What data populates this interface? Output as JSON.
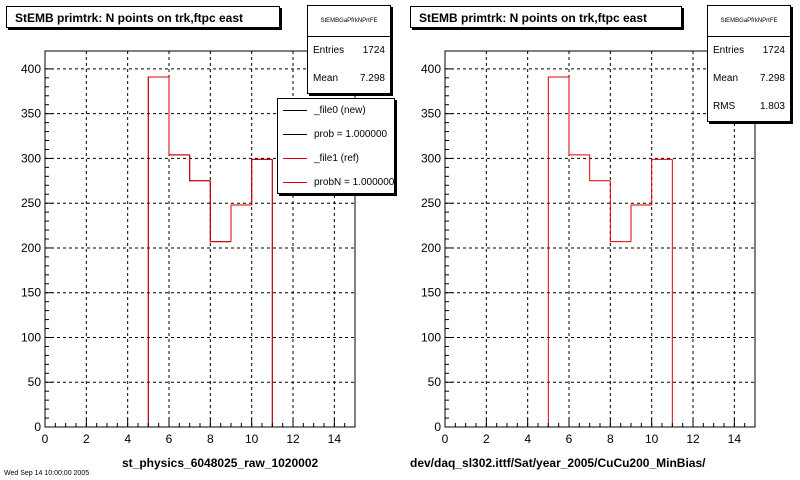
{
  "chart_data": [
    {
      "type": "bar",
      "title": "StEMB primtrk: N points on trk,ftpc east",
      "xlabel": "st_physics_6048025_raw_1020002",
      "ylabel": "",
      "xlim": [
        0,
        15
      ],
      "ylim": [
        0,
        420
      ],
      "grid": true,
      "x_ticks": [
        "0",
        "2",
        "4",
        "6",
        "8",
        "10",
        "12",
        "14"
      ],
      "y_ticks": [
        "0",
        "50",
        "100",
        "150",
        "200",
        "250",
        "300",
        "350",
        "400"
      ],
      "bin_edges": [
        0,
        1,
        2,
        3,
        4,
        5,
        6,
        7,
        8,
        9,
        10,
        11,
        12,
        13,
        14,
        15
      ],
      "series": [
        {
          "name": "_file0 (new)",
          "color": "#000000",
          "values": [
            0,
            0,
            0,
            0,
            0,
            391,
            304,
            275,
            207,
            248,
            299,
            0,
            0,
            0,
            0
          ]
        },
        {
          "name": "_file1 (ref)",
          "color": "#e00000",
          "values": [
            0,
            0,
            0,
            0,
            0,
            391,
            304,
            275,
            207,
            248,
            299,
            0,
            0,
            0,
            0
          ]
        }
      ],
      "stats": {
        "header": "StEMBGaPfrkNPrtFE",
        "entries_label": "Entries",
        "entries": "1724",
        "mean_label": "Mean",
        "mean": "7.298"
      },
      "legend": {
        "placement": "top-right",
        "entries": [
          {
            "label": "_file0 (new)",
            "color": "#000000"
          },
          {
            "label": "prob = 1.000000",
            "color": "#000000"
          },
          {
            "label": "_file1 (ref)",
            "color": "#e00000"
          },
          {
            "label": "probN = 1.000000",
            "color": "#e00000"
          }
        ]
      }
    },
    {
      "type": "bar",
      "title": "StEMB primtrk: N points on trk,ftpc east",
      "xlabel": "dev/daq_sl302.ittf/Sat/year_2005/CuCu200_MinBias/",
      "ylabel": "",
      "xlim": [
        0,
        15
      ],
      "ylim": [
        0,
        420
      ],
      "grid": true,
      "x_ticks": [
        "0",
        "2",
        "4",
        "6",
        "8",
        "10",
        "12",
        "14"
      ],
      "y_ticks": [
        "0",
        "50",
        "100",
        "150",
        "200",
        "250",
        "300",
        "350",
        "400"
      ],
      "bin_edges": [
        0,
        1,
        2,
        3,
        4,
        5,
        6,
        7,
        8,
        9,
        10,
        11,
        12,
        13,
        14,
        15
      ],
      "series": [
        {
          "color": "#e00000",
          "values": [
            0,
            0,
            0,
            0,
            0,
            391,
            304,
            275,
            207,
            248,
            299,
            0,
            0,
            0,
            0
          ]
        }
      ],
      "stats": {
        "header": "StEMBGaPfrkNPrtFE",
        "entries_label": "Entries",
        "entries": "1724",
        "mean_label": "Mean",
        "mean": "7.298",
        "rms_label": "RMS",
        "rms": "1.803"
      }
    }
  ],
  "corner_text": "Wed Sep 14 10:00:00 2005"
}
